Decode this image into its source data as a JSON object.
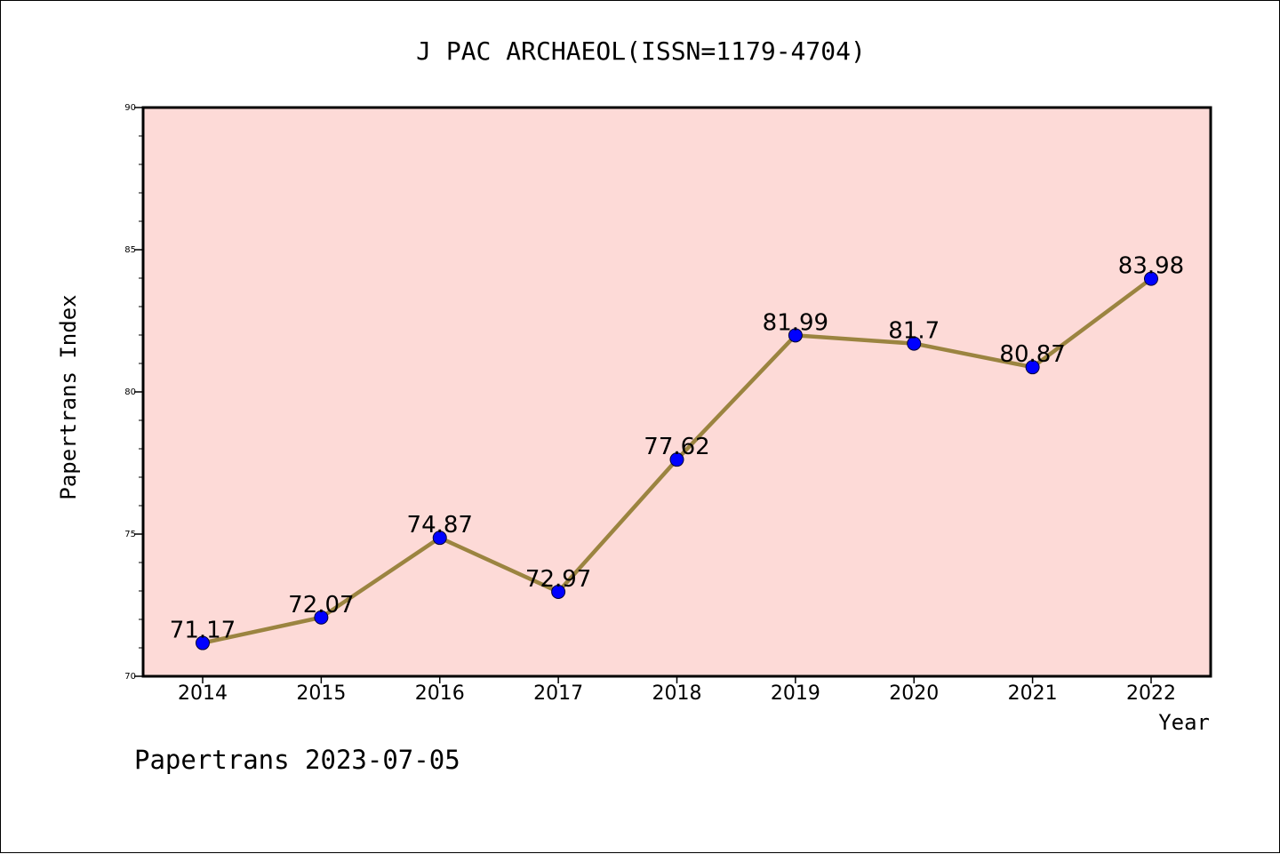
{
  "chart_data": {
    "type": "line",
    "title": "J PAC ARCHAEOL(ISSN=1179-4704)",
    "xlabel": "Year",
    "ylabel": "Papertrans Index",
    "categories": [
      "2014",
      "2015",
      "2016",
      "2017",
      "2018",
      "2019",
      "2020",
      "2021",
      "2022"
    ],
    "series": [
      {
        "values": [
          71.17,
          72.07,
          74.87,
          72.97,
          77.62,
          81.99,
          81.7,
          80.87,
          83.98
        ],
        "labels": [
          "71.17",
          "72.07",
          "74.87",
          "72.97",
          "77.62",
          "81.99",
          "81.7",
          "80.87",
          "83.98"
        ],
        "line_color": "#9b8440",
        "marker_color": "#0000ff"
      }
    ],
    "ylim": [
      70,
      90
    ],
    "yticks": [
      "70",
      "75",
      "80",
      "85",
      "90"
    ],
    "grid": false,
    "plot_background": "#fddad7"
  },
  "footer": "Papertrans 2023-07-05"
}
